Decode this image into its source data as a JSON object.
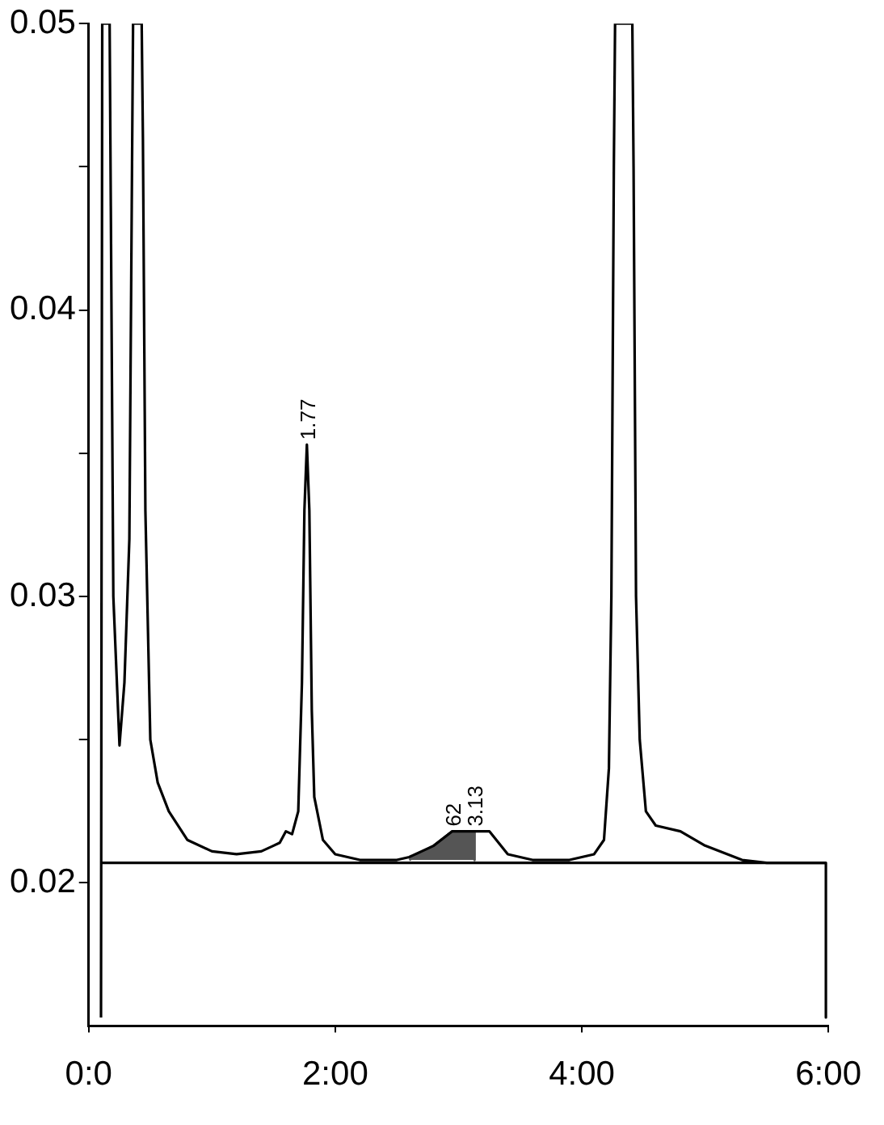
{
  "chart_data": {
    "type": "line",
    "series": [
      {
        "color": "#000000",
        "x": [
          0.1,
          0.11,
          0.17,
          0.2,
          0.25,
          0.29,
          0.33,
          0.36,
          0.43,
          0.44,
          0.46,
          0.5,
          0.56,
          0.65,
          0.8,
          1.0,
          1.2,
          1.4,
          1.5,
          1.55,
          1.6,
          1.65,
          1.7,
          1.73,
          1.75,
          1.77,
          1.79,
          1.81,
          1.83,
          1.9,
          2.0,
          2.2,
          2.5,
          2.6,
          2.8,
          2.95,
          3.13,
          3.25,
          3.4,
          3.6,
          3.9,
          4.1,
          4.18,
          4.22,
          4.24,
          4.26,
          4.27,
          4.41,
          4.42,
          4.44,
          4.47,
          4.52,
          4.6,
          4.8,
          5.0,
          5.3,
          5.5,
          5.98,
          5.98
        ],
        "values": [
          0.0153,
          0.05,
          0.05,
          0.03,
          0.0248,
          0.027,
          0.032,
          0.05,
          0.05,
          0.046,
          0.033,
          0.025,
          0.0235,
          0.0225,
          0.0215,
          0.0211,
          0.021,
          0.0211,
          0.0213,
          0.0214,
          0.0218,
          0.0217,
          0.0225,
          0.027,
          0.033,
          0.0353,
          0.033,
          0.026,
          0.023,
          0.0215,
          0.021,
          0.0208,
          0.0208,
          0.0209,
          0.0213,
          0.0218,
          0.0218,
          0.0218,
          0.021,
          0.0208,
          0.0208,
          0.021,
          0.0215,
          0.024,
          0.03,
          0.045,
          0.05,
          0.05,
          0.045,
          0.03,
          0.025,
          0.0225,
          0.022,
          0.0218,
          0.0213,
          0.0208,
          0.0207,
          0.0207,
          0.0153
        ]
      },
      {
        "color": "#000000",
        "x": [
          0.1,
          5.98
        ],
        "values": [
          0.0207,
          0.0207
        ]
      },
      {
        "type": "area",
        "color": "#555555",
        "x": [
          2.6,
          2.8,
          2.95,
          3.13,
          3.13
        ],
        "values": [
          0.0208,
          0.0213,
          0.0218,
          0.0218,
          0.0208
        ]
      }
    ],
    "xlim": [
      0,
      6
    ],
    "xticks": [
      {
        "value": 0,
        "label": "0:0"
      },
      {
        "value": 2,
        "label": "2:00"
      },
      {
        "value": 4,
        "label": "4:00"
      },
      {
        "value": 6,
        "label": "6:00"
      }
    ],
    "ylim": [
      0.015,
      0.05
    ],
    "yticks": [
      0.02,
      {
        "value": 0.025,
        "label": null
      },
      0.03,
      {
        "value": 0.035,
        "label": null
      },
      0.04,
      {
        "value": 0.045,
        "label": null
      },
      0.05
    ],
    "annotations": [
      {
        "text": "1.77",
        "x": 1.77,
        "y": 0.0353
      },
      {
        "text": "62",
        "x": 2.95,
        "y": 0.0218
      },
      {
        "text": "3.13",
        "x": 3.13,
        "y": 0.0218
      }
    ],
    "grid": false,
    "legend": false,
    "marker": "none",
    "line_style": "solid"
  }
}
